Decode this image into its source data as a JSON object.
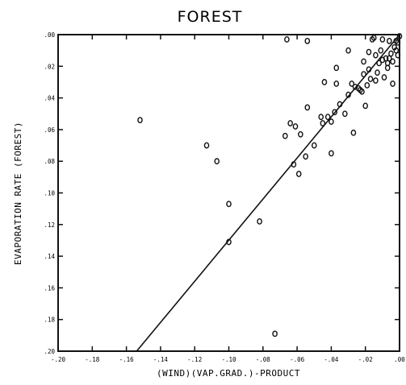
{
  "chart_data": {
    "type": "scatter",
    "title": "FOREST",
    "xlabel": "(WIND)(VAP.GRAD.)-PRODUCT",
    "ylabel": "EVAPORATION RATE (FOREST)",
    "xlim": [
      -0.2,
      0.0
    ],
    "ylim": [
      0.0,
      -0.2
    ],
    "x_ticks": [
      "-.20",
      "-.18",
      "-.16",
      "-.14",
      "-.12",
      "-.10",
      "-.08",
      "-.06",
      "-.04",
      "-.02",
      ".00"
    ],
    "y_ticks": [
      ".00",
      ".02",
      ".04",
      ".06",
      ".08",
      ".10",
      ".12",
      ".14",
      ".16",
      ".18",
      ".20"
    ],
    "x_tick_values": [
      -0.2,
      -0.18,
      -0.16,
      -0.14,
      -0.12,
      -0.1,
      -0.08,
      -0.06,
      -0.04,
      -0.02,
      0.0
    ],
    "y_tick_values": [
      0.0,
      -0.02,
      -0.04,
      -0.06,
      -0.08,
      -0.1,
      -0.12,
      -0.14,
      -0.16,
      -0.18,
      -0.2
    ],
    "grid": false,
    "legend": "none",
    "fit_line": {
      "x": [
        -0.154,
        0.0
      ],
      "y": [
        -0.2,
        0.0
      ]
    },
    "points": [
      {
        "x": -0.152,
        "y": -0.054
      },
      {
        "x": -0.113,
        "y": -0.07
      },
      {
        "x": -0.107,
        "y": -0.08
      },
      {
        "x": -0.1,
        "y": -0.107
      },
      {
        "x": -0.1,
        "y": -0.131
      },
      {
        "x": -0.082,
        "y": -0.118
      },
      {
        "x": -0.073,
        "y": -0.189
      },
      {
        "x": -0.066,
        "y": -0.003
      },
      {
        "x": -0.054,
        "y": -0.004
      },
      {
        "x": -0.067,
        "y": -0.064
      },
      {
        "x": -0.064,
        "y": -0.056
      },
      {
        "x": -0.061,
        "y": -0.058
      },
      {
        "x": -0.062,
        "y": -0.082
      },
      {
        "x": -0.059,
        "y": -0.088
      },
      {
        "x": -0.058,
        "y": -0.063
      },
      {
        "x": -0.055,
        "y": -0.077
      },
      {
        "x": -0.054,
        "y": -0.046
      },
      {
        "x": -0.05,
        "y": -0.07
      },
      {
        "x": -0.046,
        "y": -0.052
      },
      {
        "x": -0.045,
        "y": -0.056
      },
      {
        "x": -0.042,
        "y": -0.052
      },
      {
        "x": -0.04,
        "y": -0.055
      },
      {
        "x": -0.038,
        "y": -0.049
      },
      {
        "x": -0.04,
        "y": -0.075
      },
      {
        "x": -0.037,
        "y": -0.031
      },
      {
        "x": -0.037,
        "y": -0.021
      },
      {
        "x": -0.035,
        "y": -0.044
      },
      {
        "x": -0.032,
        "y": -0.05
      },
      {
        "x": -0.03,
        "y": -0.038
      },
      {
        "x": -0.028,
        "y": -0.031
      },
      {
        "x": -0.027,
        "y": -0.062
      },
      {
        "x": -0.026,
        "y": -0.033
      },
      {
        "x": -0.024,
        "y": -0.034
      },
      {
        "x": -0.023,
        "y": -0.035
      },
      {
        "x": -0.022,
        "y": -0.036
      },
      {
        "x": -0.021,
        "y": -0.025
      },
      {
        "x": -0.021,
        "y": -0.017
      },
      {
        "x": -0.02,
        "y": -0.045
      },
      {
        "x": -0.019,
        "y": -0.032
      },
      {
        "x": -0.018,
        "y": -0.022
      },
      {
        "x": -0.017,
        "y": -0.028
      },
      {
        "x": -0.016,
        "y": -0.003
      },
      {
        "x": -0.015,
        "y": -0.002
      },
      {
        "x": -0.014,
        "y": -0.013
      },
      {
        "x": -0.014,
        "y": -0.029
      },
      {
        "x": -0.012,
        "y": -0.018
      },
      {
        "x": -0.011,
        "y": -0.01
      },
      {
        "x": -0.01,
        "y": -0.016
      },
      {
        "x": -0.01,
        "y": -0.003
      },
      {
        "x": -0.009,
        "y": -0.027
      },
      {
        "x": -0.008,
        "y": -0.015
      },
      {
        "x": -0.007,
        "y": -0.018
      },
      {
        "x": -0.007,
        "y": -0.021
      },
      {
        "x": -0.006,
        "y": -0.015
      },
      {
        "x": -0.005,
        "y": -0.012
      },
      {
        "x": -0.004,
        "y": -0.017
      },
      {
        "x": -0.004,
        "y": -0.031
      },
      {
        "x": -0.003,
        "y": -0.008
      },
      {
        "x": -0.002,
        "y": -0.004
      },
      {
        "x": -0.002,
        "y": -0.01
      },
      {
        "x": -0.001,
        "y": -0.005
      },
      {
        "x": -0.001,
        "y": -0.013
      },
      {
        "x": 0.0,
        "y": -0.001
      },
      {
        "x": -0.006,
        "y": -0.004
      },
      {
        "x": -0.013,
        "y": -0.024
      },
      {
        "x": -0.018,
        "y": -0.011
      },
      {
        "x": -0.044,
        "y": -0.03
      },
      {
        "x": -0.03,
        "y": -0.01
      }
    ]
  }
}
